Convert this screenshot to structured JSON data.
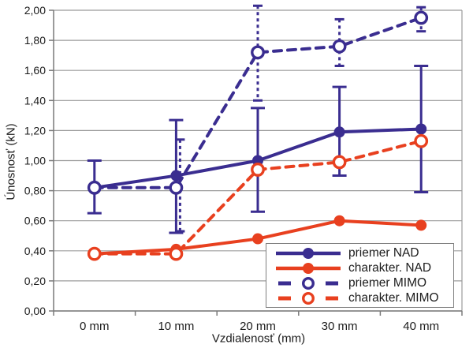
{
  "figure": {
    "ylabel": "Únosnosť (kN)",
    "xlabel": "Vzdialenosť (mm)"
  },
  "chart_data": {
    "type": "line",
    "title": "",
    "categories": [
      "0 mm",
      "10 mm",
      "20 mm",
      "30 mm",
      "40 mm"
    ],
    "x_values_mm": [
      0,
      10,
      20,
      30,
      40
    ],
    "ylabel": "Únosnosť (kN)",
    "xlabel": "Vzdialenosť (mm)",
    "ylim": [
      0,
      2
    ],
    "ytick_step": 0.2,
    "ytick_labels": [
      "0,00",
      "0,20",
      "0,40",
      "0,60",
      "0,80",
      "1,00",
      "1,20",
      "1,40",
      "1,60",
      "1,80",
      "2,00"
    ],
    "grid": true,
    "legend_position": "inside-bottom-right",
    "series": [
      {
        "name": "priemer NAD",
        "color": "#3a2d90",
        "style": "solid",
        "marker": "filled",
        "values": [
          0.82,
          0.9,
          1.0,
          1.19,
          1.21
        ],
        "err_lo": [
          0.65,
          0.52,
          0.66,
          0.9,
          0.79
        ],
        "err_hi": [
          1.0,
          1.27,
          1.35,
          1.49,
          1.63
        ],
        "err_style": "solid"
      },
      {
        "name": "charakter. NAD",
        "color": "#e8401f",
        "style": "solid",
        "marker": "filled",
        "values": [
          0.38,
          0.41,
          0.48,
          0.6,
          0.57
        ]
      },
      {
        "name": "priemer MIMO",
        "color": "#3a2d90",
        "style": "dashed",
        "marker": "open",
        "values": [
          0.82,
          0.82,
          1.72,
          1.76,
          1.95
        ],
        "err_lo": [
          null,
          0.53,
          1.4,
          1.63,
          1.86
        ],
        "err_hi": [
          null,
          1.14,
          2.03,
          1.94,
          2.02
        ],
        "err_style": "dotted",
        "err_dx": [
          0,
          5,
          0,
          0,
          0
        ]
      },
      {
        "name": "charakter. MIMO",
        "color": "#e8401f",
        "style": "dashed",
        "marker": "open",
        "values": [
          0.38,
          0.38,
          0.94,
          0.99,
          1.13
        ]
      }
    ],
    "colors": {
      "grid": "#9b9b9b",
      "axis": "#7a7a7a",
      "text": "#1c1c1c"
    }
  }
}
